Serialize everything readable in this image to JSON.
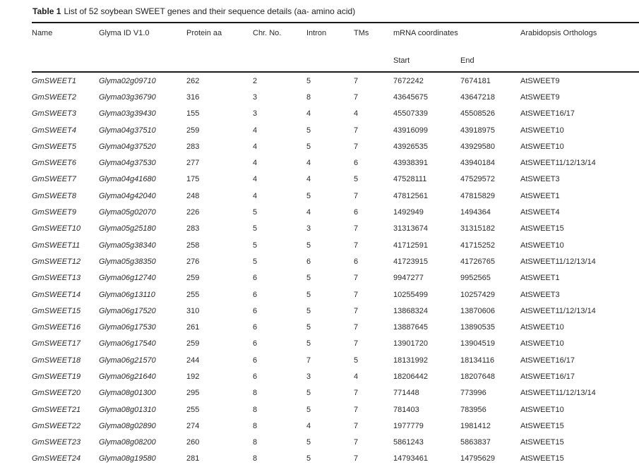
{
  "caption": {
    "label": "Table 1",
    "text": "List of 52 soybean SWEET genes and their sequence details (aa- amino acid)"
  },
  "table": {
    "headers": {
      "name": "Name",
      "glyma_id": "Glyma ID V1.0",
      "protein_aa": "Protein aa",
      "chr_no": "Chr. No.",
      "intron": "Intron",
      "tms": "TMs",
      "mrna_coordinates": "mRNA coordinates",
      "orthologs": "Arabidopsis Orthologs"
    },
    "subheaders": {
      "start": "Start",
      "end": "End"
    },
    "rows": [
      {
        "name": "GmSWEET1",
        "glyma_id": "Glyma02g09710",
        "protein_aa": "262",
        "chr_no": "2",
        "intron": "5",
        "tms": "7",
        "start": "7672242",
        "end": "7674181",
        "ortholog": "AtSWEET9"
      },
      {
        "name": "GmSWEET2",
        "glyma_id": "Glyma03g36790",
        "protein_aa": "316",
        "chr_no": "3",
        "intron": "8",
        "tms": "7",
        "start": "43645675",
        "end": "43647218",
        "ortholog": "AtSWEET9"
      },
      {
        "name": "GmSWEET3",
        "glyma_id": "Glyma03g39430",
        "protein_aa": "155",
        "chr_no": "3",
        "intron": "4",
        "tms": "4",
        "start": "45507339",
        "end": "45508526",
        "ortholog": "AtSWEET16/17"
      },
      {
        "name": "GmSWEET4",
        "glyma_id": "Glyma04g37510",
        "protein_aa": "259",
        "chr_no": "4",
        "intron": "5",
        "tms": "7",
        "start": "43916099",
        "end": "43918975",
        "ortholog": "AtSWEET10"
      },
      {
        "name": "GmSWEET5",
        "glyma_id": "Glyma04g37520",
        "protein_aa": "283",
        "chr_no": "4",
        "intron": "5",
        "tms": "7",
        "start": "43926535",
        "end": "43929580",
        "ortholog": "AtSWEET10"
      },
      {
        "name": "GmSWEET6",
        "glyma_id": "Glyma04g37530",
        "protein_aa": "277",
        "chr_no": "4",
        "intron": "4",
        "tms": "6",
        "start": "43938391",
        "end": "43940184",
        "ortholog": "AtSWEET11/12/13/14"
      },
      {
        "name": "GmSWEET7",
        "glyma_id": "Glyma04g41680",
        "protein_aa": "175",
        "chr_no": "4",
        "intron": "4",
        "tms": "5",
        "start": "47528111",
        "end": "47529572",
        "ortholog": "AtSWEET3"
      },
      {
        "name": "GmSWEET8",
        "glyma_id": "Glyma04g42040",
        "protein_aa": "248",
        "chr_no": "4",
        "intron": "5",
        "tms": "7",
        "start": "47812561",
        "end": "47815829",
        "ortholog": "AtSWEET1"
      },
      {
        "name": "GmSWEET9",
        "glyma_id": "Glyma05g02070",
        "protein_aa": "226",
        "chr_no": "5",
        "intron": "4",
        "tms": "6",
        "start": "1492949",
        "end": "1494364",
        "ortholog": "AtSWEET4"
      },
      {
        "name": "GmSWEET10",
        "glyma_id": "Glyma05g25180",
        "protein_aa": "283",
        "chr_no": "5",
        "intron": "3",
        "tms": "7",
        "start": "31313674",
        "end": "31315182",
        "ortholog": "AtSWEET15"
      },
      {
        "name": "GmSWEET11",
        "glyma_id": "Glyma05g38340",
        "protein_aa": "258",
        "chr_no": "5",
        "intron": "5",
        "tms": "7",
        "start": "41712591",
        "end": "41715252",
        "ortholog": "AtSWEET10"
      },
      {
        "name": "GmSWEET12",
        "glyma_id": "Glyma05g38350",
        "protein_aa": "276",
        "chr_no": "5",
        "intron": "6",
        "tms": "6",
        "start": "41723915",
        "end": "41726765",
        "ortholog": "AtSWEET11/12/13/14"
      },
      {
        "name": "GmSWEET13",
        "glyma_id": "Glyma06g12740",
        "protein_aa": "259",
        "chr_no": "6",
        "intron": "5",
        "tms": "7",
        "start": "9947277",
        "end": "9952565",
        "ortholog": "AtSWEET1"
      },
      {
        "name": "GmSWEET14",
        "glyma_id": "Glyma06g13110",
        "protein_aa": "255",
        "chr_no": "6",
        "intron": "5",
        "tms": "7",
        "start": "10255499",
        "end": "10257429",
        "ortholog": "AtSWEET3"
      },
      {
        "name": "GmSWEET15",
        "glyma_id": "Glyma06g17520",
        "protein_aa": "310",
        "chr_no": "6",
        "intron": "5",
        "tms": "7",
        "start": "13868324",
        "end": "13870606",
        "ortholog": "AtSWEET11/12/13/14"
      },
      {
        "name": "GmSWEET16",
        "glyma_id": "Glyma06g17530",
        "protein_aa": "261",
        "chr_no": "6",
        "intron": "5",
        "tms": "7",
        "start": "13887645",
        "end": "13890535",
        "ortholog": "AtSWEET10"
      },
      {
        "name": "GmSWEET17",
        "glyma_id": "Glyma06g17540",
        "protein_aa": "259",
        "chr_no": "6",
        "intron": "5",
        "tms": "7",
        "start": "13901720",
        "end": "13904519",
        "ortholog": "AtSWEET10"
      },
      {
        "name": "GmSWEET18",
        "glyma_id": "Glyma06g21570",
        "protein_aa": "244",
        "chr_no": "6",
        "intron": "7",
        "tms": "5",
        "start": "18131992",
        "end": "18134116",
        "ortholog": "AtSWEET16/17"
      },
      {
        "name": "GmSWEET19",
        "glyma_id": "Glyma06g21640",
        "protein_aa": "192",
        "chr_no": "6",
        "intron": "3",
        "tms": "4",
        "start": "18206442",
        "end": "18207648",
        "ortholog": "AtSWEET16/17"
      },
      {
        "name": "GmSWEET20",
        "glyma_id": "Glyma08g01300",
        "protein_aa": "295",
        "chr_no": "8",
        "intron": "5",
        "tms": "7",
        "start": "771448",
        "end": "773996",
        "ortholog": "AtSWEET11/12/13/14"
      },
      {
        "name": "GmSWEET21",
        "glyma_id": "Glyma08g01310",
        "protein_aa": "255",
        "chr_no": "8",
        "intron": "5",
        "tms": "7",
        "start": "781403",
        "end": "783956",
        "ortholog": "AtSWEET10"
      },
      {
        "name": "GmSWEET22",
        "glyma_id": "Glyma08g02890",
        "protein_aa": "274",
        "chr_no": "8",
        "intron": "4",
        "tms": "7",
        "start": "1977779",
        "end": "1981412",
        "ortholog": "AtSWEET15"
      },
      {
        "name": "GmSWEET23",
        "glyma_id": "Glyma08g08200",
        "protein_aa": "260",
        "chr_no": "8",
        "intron": "5",
        "tms": "7",
        "start": "5861243",
        "end": "5863837",
        "ortholog": "AtSWEET15"
      },
      {
        "name": "GmSWEET24",
        "glyma_id": "Glyma08g19580",
        "protein_aa": "281",
        "chr_no": "8",
        "intron": "5",
        "tms": "7",
        "start": "14793461",
        "end": "14795629",
        "ortholog": "AtSWEET15"
      }
    ]
  }
}
